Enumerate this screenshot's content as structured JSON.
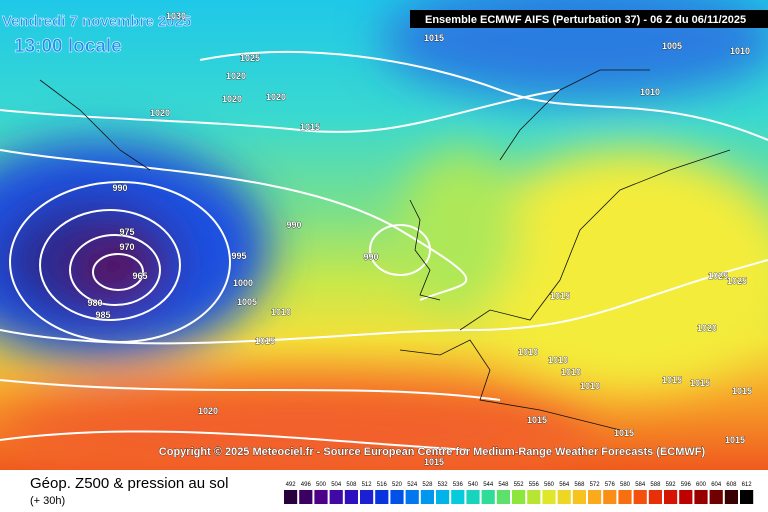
{
  "header": {
    "date": "Vendredi 7 novembre 2025",
    "time": "13:00 locale",
    "model": "Ensemble ECMWF AIFS  (Perturbation 37)  -  06 Z du 06/11/2025"
  },
  "copyright": "Copyright © 2025 Meteociel.fr - Source European Centre for Medium-Range Weather Forecasts (ECMWF)",
  "legend": {
    "title": "Géop. Z500 & pression au sol",
    "lead_time": "(+ 30h)",
    "scale": [
      492,
      496,
      500,
      504,
      508,
      512,
      516,
      520,
      524,
      528,
      532,
      536,
      540,
      544,
      548,
      552,
      556,
      560,
      564,
      568,
      572,
      576,
      580,
      584,
      588,
      592,
      596,
      600,
      604,
      608,
      612
    ]
  },
  "isobar_labels": [
    1030,
    1015,
    1005,
    1010,
    1025,
    1020,
    1020,
    1020,
    1010,
    1020,
    1015,
    990,
    990,
    975,
    970,
    965,
    995,
    990,
    1000,
    980,
    1005,
    985,
    1010,
    1015,
    1025,
    1025,
    1020,
    1015,
    1010,
    1010,
    1010,
    1010,
    1015,
    1015,
    1015,
    1020,
    1015,
    1015,
    1015,
    1015
  ]
}
